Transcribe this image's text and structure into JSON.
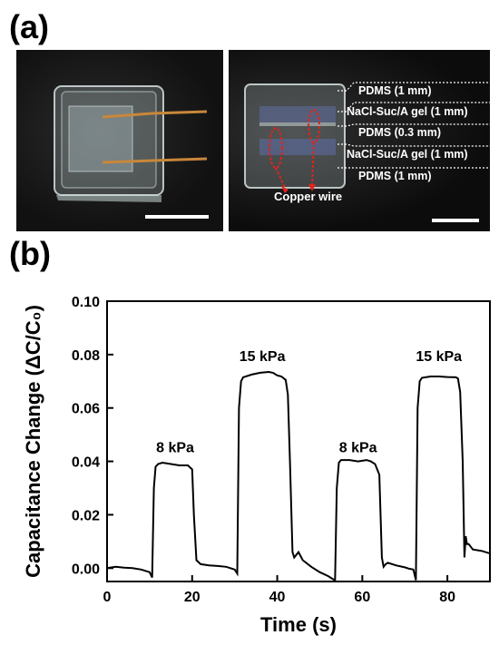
{
  "panels": {
    "a": "(a)",
    "b": "(b)"
  },
  "photo_labels": {
    "layers": [
      "PDMS (1 mm)",
      "NaCl-Suc/A gel (1 mm)",
      "PDMS (0.3 mm)",
      "NaCl-Suc/A gel (1 mm)",
      "PDMS (1 mm)"
    ],
    "copper": "Copper wire"
  },
  "colors": {
    "photo_bg": "#111111",
    "trace": "#000000",
    "annotation_red": "#e0241c",
    "copper": "#c8873a"
  },
  "chart_data": {
    "type": "line",
    "xlabel": "Time (s)",
    "ylabel": "Capacitance Change (ΔC/C₀)",
    "xlim": [
      0,
      90
    ],
    "ylim": [
      -0.005,
      0.1
    ],
    "xticks": [
      "0",
      "20",
      "40",
      "60",
      "80"
    ],
    "yticks": [
      "0.00",
      "0.02",
      "0.04",
      "0.06",
      "0.08",
      "0.10"
    ],
    "series": [
      {
        "x": [
          0,
          2,
          4,
          6,
          8,
          10,
          10.6,
          11,
          11.4,
          12,
          13,
          15,
          17,
          19,
          20,
          20.4,
          21,
          22,
          24,
          26,
          28,
          30,
          30.6,
          31,
          31.5,
          32,
          34,
          36,
          38,
          39,
          40,
          41,
          42,
          42.5,
          43,
          43.6,
          44,
          45,
          46,
          48,
          50,
          52,
          53,
          53.6,
          54,
          54.5,
          55,
          57,
          59,
          61,
          62,
          63,
          64,
          64.6,
          65,
          65.5,
          66,
          68,
          70,
          71,
          72,
          72.6,
          73,
          73.5,
          74,
          76,
          78,
          80,
          82,
          82.5,
          83,
          83.6,
          84,
          84.3,
          84.6,
          85,
          86,
          88,
          90
        ],
        "y": [
          0.0,
          0.0005,
          0.0002,
          0.0,
          -0.0005,
          -0.0015,
          -0.0035,
          0.03,
          0.038,
          0.039,
          0.0395,
          0.039,
          0.0385,
          0.0385,
          0.037,
          0.02,
          0.003,
          0.0015,
          0.001,
          0.0008,
          0.0005,
          -0.0005,
          -0.002,
          0.06,
          0.07,
          0.0715,
          0.0725,
          0.0732,
          0.0735,
          0.0732,
          0.0722,
          0.0718,
          0.0705,
          0.065,
          0.04,
          0.006,
          0.004,
          0.006,
          0.003,
          0.0005,
          -0.0015,
          -0.003,
          -0.004,
          -0.0045,
          0.03,
          0.0395,
          0.0405,
          0.0405,
          0.04,
          0.0405,
          0.04,
          0.039,
          0.035,
          0.004,
          0.0005,
          0.0015,
          0.002,
          0.001,
          0.0003,
          -0.0002,
          -0.0005,
          -0.0045,
          0.06,
          0.07,
          0.0713,
          0.0718,
          0.0718,
          0.0716,
          0.0715,
          0.071,
          0.066,
          0.04,
          0.004,
          0.012,
          0.009,
          0.009,
          0.007,
          0.0065,
          0.0055
        ]
      }
    ],
    "annotations": [
      {
        "text": "8 kPa",
        "x": 16,
        "y": 0.0435
      },
      {
        "text": "15 kPa",
        "x": 36.5,
        "y": 0.0775
      },
      {
        "text": "8 kPa",
        "x": 59,
        "y": 0.0435
      },
      {
        "text": "15 kPa",
        "x": 78,
        "y": 0.0775
      }
    ],
    "grid": false,
    "legend": "none"
  }
}
